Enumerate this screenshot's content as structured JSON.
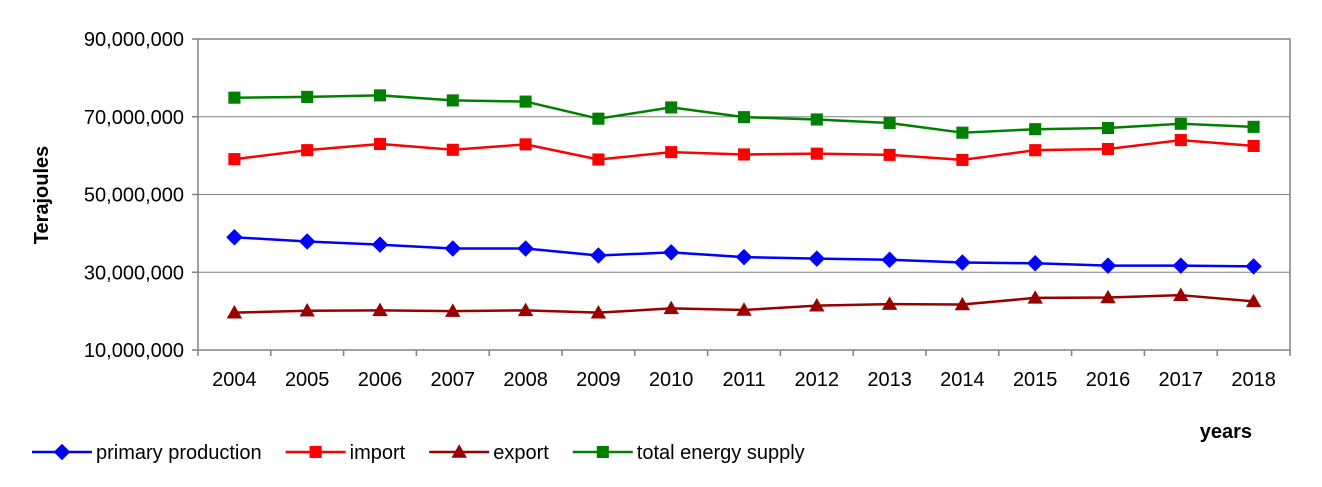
{
  "chart_data": {
    "type": "line",
    "title": "",
    "xlabel": "years",
    "ylabel": "Terajoules",
    "ylim": [
      10000000,
      90000000
    ],
    "yticks": [
      10000000,
      30000000,
      50000000,
      70000000,
      90000000
    ],
    "ytick_labels": [
      "10,000,000",
      "30,000,000",
      "50,000,000",
      "70,000,000",
      "90,000,000"
    ],
    "categories": [
      "2004",
      "2005",
      "2006",
      "2007",
      "2008",
      "2009",
      "2010",
      "2011",
      "2012",
      "2013",
      "2014",
      "2015",
      "2016",
      "2017",
      "2018"
    ],
    "grid": true,
    "legend_position": "bottom-left",
    "series": [
      {
        "name": "primary production",
        "color": "#0000ff",
        "marker": "diamond",
        "values": [
          39000000,
          37900000,
          37100000,
          36100000,
          36100000,
          34300000,
          35100000,
          33900000,
          33500000,
          33200000,
          32500000,
          32300000,
          31700000,
          31700000,
          31500000
        ]
      },
      {
        "name": "import",
        "color": "#ff0000",
        "marker": "square",
        "values": [
          59100000,
          61400000,
          63000000,
          61500000,
          62900000,
          59000000,
          60900000,
          60300000,
          60500000,
          60200000,
          58900000,
          61400000,
          61700000,
          64000000,
          62500000
        ]
      },
      {
        "name": "export",
        "color": "#990000",
        "marker": "triangle",
        "values": [
          19600000,
          20100000,
          20200000,
          20000000,
          20200000,
          19600000,
          20700000,
          20300000,
          21400000,
          21800000,
          21700000,
          23400000,
          23500000,
          24100000,
          22500000
        ]
      },
      {
        "name": "total energy supply",
        "color": "#008000",
        "marker": "square",
        "values": [
          74900000,
          75100000,
          75500000,
          74200000,
          73900000,
          69500000,
          72400000,
          69900000,
          69300000,
          68400000,
          65900000,
          66800000,
          67100000,
          68200000,
          67400000
        ]
      }
    ]
  }
}
